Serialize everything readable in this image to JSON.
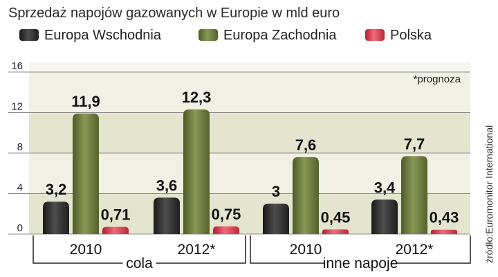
{
  "chart_data": {
    "type": "bar",
    "title": "Sprzedaż napojów gazowanych w Europie w mld euro",
    "note": "*prognoza",
    "source": "źródło:Euromonitor International",
    "ylim": [
      0,
      16
    ],
    "yticks": [
      0,
      4,
      8,
      12,
      16
    ],
    "grid": true,
    "legend_position": "top",
    "groups": [
      {
        "label": "cola",
        "categories": [
          "2010",
          "2012*"
        ]
      },
      {
        "label": "inne napoje",
        "categories": [
          "2010",
          "2012*"
        ]
      }
    ],
    "categories": [
      "2010",
      "2012*",
      "2010",
      "2012*"
    ],
    "series": [
      {
        "name": "Europa Wschodnia",
        "color": "#333333",
        "values": [
          3.2,
          3.6,
          3,
          3.4
        ],
        "labels": [
          "3,2",
          "3,6",
          "3",
          "3,4"
        ]
      },
      {
        "name": "Europa Zachodnia",
        "color": "#6e7a3e",
        "values": [
          11.9,
          12.3,
          7.6,
          7.7
        ],
        "labels": [
          "11,9",
          "12,3",
          "7,6",
          "7,7"
        ]
      },
      {
        "name": "Polska",
        "color": "#d9404f",
        "values": [
          0.71,
          0.75,
          0.45,
          0.43
        ],
        "labels": [
          "0,71",
          "0,75",
          "0,45",
          "0,43"
        ]
      }
    ]
  }
}
